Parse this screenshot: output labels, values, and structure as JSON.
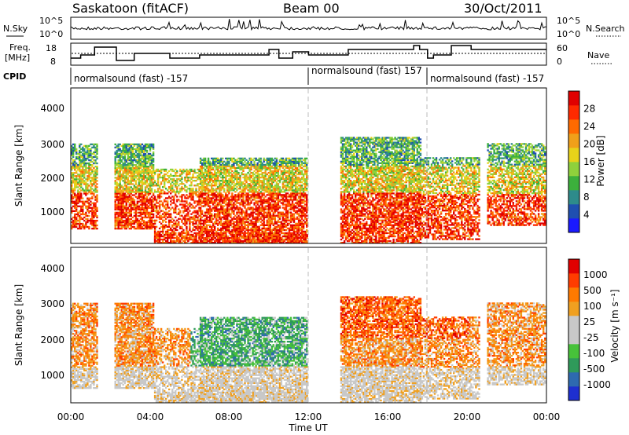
{
  "header": {
    "station": "Saskatoon (fitACF)",
    "beam": "Beam 00",
    "date": "30/Oct/2011"
  },
  "noise_panel": {
    "left_label": "N.Sky",
    "right_label": "N.Search",
    "left_ticks": [
      "10^5",
      "10^0"
    ],
    "right_ticks": [
      "10^5",
      "10^0"
    ]
  },
  "freq_panel": {
    "left_label_line1": "Freq.",
    "left_label_line2": "[MHz]",
    "right_label": "Nave",
    "left_ticks": [
      "18",
      "8"
    ],
    "right_ticks": [
      "60",
      "0"
    ]
  },
  "cpid_panel": {
    "label": "CPID",
    "segments": [
      {
        "start_h": 0.0,
        "end_h": 12.0,
        "text": "normalsound (fast) -157"
      },
      {
        "start_h": 12.0,
        "end_h": 18.0,
        "text": "normalsound (fast) 157"
      },
      {
        "start_h": 18.0,
        "end_h": 24.0,
        "text": "normalsound (fast) -157"
      }
    ]
  },
  "chart_data": [
    {
      "type": "heatmap",
      "name": "power",
      "ylabel": "Slant Range [km]",
      "y_ticks": [
        "1000",
        "2000",
        "3000",
        "4000"
      ],
      "ylim": [
        200,
        4600
      ],
      "xlim_hours": [
        0,
        24
      ],
      "colorbar": {
        "title": "Power [dB]",
        "tick_labels": [
          "4",
          "8",
          "12",
          "16",
          "20",
          "24",
          "28"
        ],
        "colors": [
          "#1a1aff",
          "#1f4fb0",
          "#2e8b8b",
          "#3cb03c",
          "#8fd13c",
          "#e8d21a",
          "#f0a01a",
          "#ff6a00",
          "#ff2a00",
          "#e00000"
        ]
      }
    },
    {
      "type": "heatmap",
      "name": "velocity",
      "ylabel": "Slant Range [km]",
      "xlabel": "Time UT",
      "y_ticks": [
        "1000",
        "2000",
        "3000",
        "4000"
      ],
      "ylim": [
        200,
        4600
      ],
      "xlim_hours": [
        0,
        24
      ],
      "x_ticks": [
        "00:00",
        "04:00",
        "08:00",
        "12:00",
        "16:00",
        "20:00",
        "00:00"
      ],
      "colorbar": {
        "title": "Velocity [m s⁻¹]",
        "tick_labels": [
          "1000",
          "500",
          "100",
          "25",
          "-25",
          "-100",
          "-500",
          "-1000"
        ],
        "colors": [
          "#1e2fd0",
          "#2e6ab0",
          "#2f9a5a",
          "#47c23a",
          "#c8c8c8",
          "#c8c8c8",
          "#f0a020",
          "#ff7a00",
          "#ff3c00",
          "#e00000"
        ]
      }
    }
  ],
  "colors": {
    "freq_line": "#000000",
    "dashed_midline": "#000000",
    "grid_dash": "#bbbbbb"
  }
}
